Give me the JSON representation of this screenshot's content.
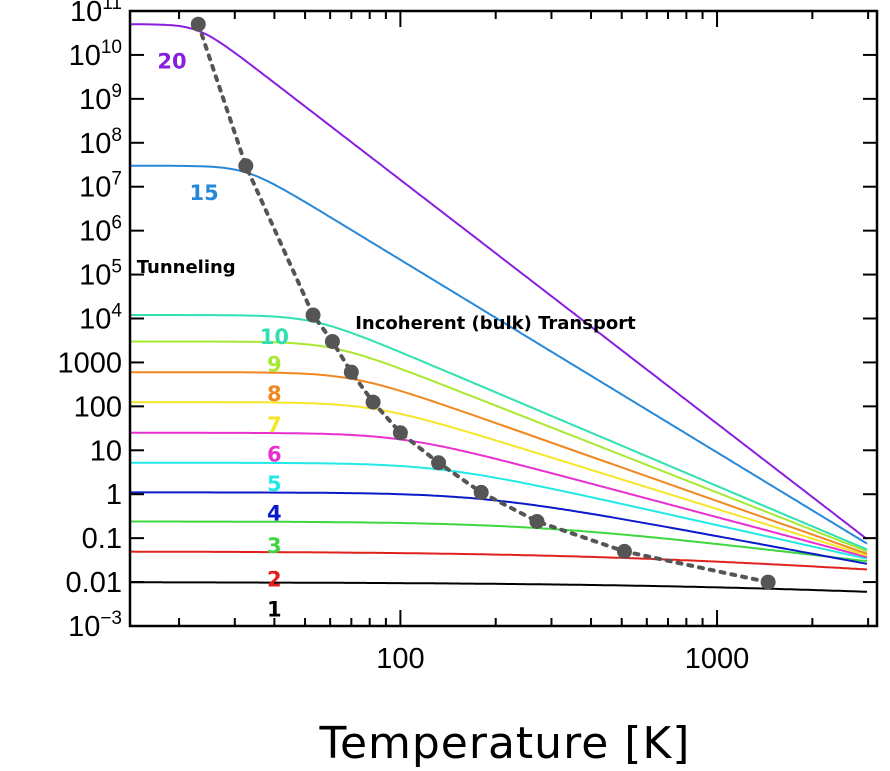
{
  "chart_data": {
    "type": "line",
    "xlabel": "Temperature [K]",
    "ylabel": "",
    "x_scale": "log",
    "y_scale": "log",
    "xlim": [
      14,
      3200
    ],
    "ylim": [
      0.001,
      100000000000
    ],
    "x_ticks": [
      {
        "value": 100,
        "label": "100"
      },
      {
        "value": 1000,
        "label": "1000"
      }
    ],
    "y_ticks": [
      {
        "value": 100000000000,
        "base": "10",
        "exp": "11",
        "label": ""
      },
      {
        "value": 10000000000,
        "base": "10",
        "exp": "10",
        "label": ""
      },
      {
        "value": 1000000000,
        "base": "10",
        "exp": "9",
        "label": ""
      },
      {
        "value": 100000000,
        "base": "10",
        "exp": "8",
        "label": ""
      },
      {
        "value": 10000000,
        "base": "10",
        "exp": "7",
        "label": ""
      },
      {
        "value": 1000000,
        "base": "10",
        "exp": "6",
        "label": ""
      },
      {
        "value": 100000,
        "base": "10",
        "exp": "5",
        "label": ""
      },
      {
        "value": 10000,
        "base": "10",
        "exp": "4",
        "label": ""
      },
      {
        "value": 1000,
        "base": "",
        "exp": "",
        "label": "1000"
      },
      {
        "value": 100,
        "base": "",
        "exp": "",
        "label": "100"
      },
      {
        "value": 10,
        "base": "",
        "exp": "",
        "label": "10"
      },
      {
        "value": 1,
        "base": "",
        "exp": "",
        "label": "1"
      },
      {
        "value": 0.1,
        "base": "",
        "exp": "",
        "label": "0.1"
      },
      {
        "value": 0.01,
        "base": "",
        "exp": "",
        "label": "0.01"
      },
      {
        "value": 0.001,
        "base": "10",
        "exp": "−3",
        "label": ""
      }
    ],
    "series": [
      {
        "label": "1",
        "color": "#000000",
        "plateau": 0.01,
        "crossover_T": 1450,
        "end_value": 0.0095,
        "label_x": 40,
        "label_y": 0.0025
      },
      {
        "label": "2",
        "color": "#e0201c",
        "plateau": 0.05,
        "crossover_T": 510,
        "end_value": 0.021,
        "label_x": 40,
        "label_y": 0.012
      },
      {
        "label": "3",
        "color": "#3dd63d",
        "plateau": 0.24,
        "crossover_T": 270,
        "end_value": 0.03,
        "label_x": 40,
        "label_y": 0.07
      },
      {
        "label": "4",
        "color": "#0a1ac8",
        "plateau": 1.1,
        "crossover_T": 180,
        "end_value": 0.026,
        "label_x": 40,
        "label_y": 0.38
      },
      {
        "label": "5",
        "color": "#22e8e8",
        "plateau": 5.2,
        "crossover_T": 132,
        "end_value": 0.034,
        "label_x": 40,
        "label_y": 1.8
      },
      {
        "label": "6",
        "color": "#e830d0",
        "plateau": 25,
        "crossover_T": 100,
        "end_value": 0.037,
        "label_x": 40,
        "label_y": 8.5
      },
      {
        "label": "7",
        "color": "#f5e62a",
        "plateau": 125,
        "crossover_T": 82,
        "end_value": 0.04,
        "label_x": 40,
        "label_y": 40
      },
      {
        "label": "8",
        "color": "#f08820",
        "plateau": 600,
        "crossover_T": 70,
        "end_value": 0.044,
        "label_x": 40,
        "label_y": 200
      },
      {
        "label": "9",
        "color": "#a8e830",
        "plateau": 3000,
        "crossover_T": 61,
        "end_value": 0.05,
        "label_x": 40,
        "label_y": 950
      },
      {
        "label": "10",
        "color": "#30e0b0",
        "plateau": 12000,
        "crossover_T": 53,
        "end_value": 0.055,
        "label_x": 40,
        "label_y": 4000
      },
      {
        "label": "15",
        "color": "#2888d8",
        "plateau": 30000000,
        "crossover_T": 32.5,
        "end_value": 0.075,
        "label_x": 24,
        "label_y": 7500000
      },
      {
        "label": "20",
        "color": "#8a1ee0",
        "plateau": 50000000000,
        "crossover_T": 23,
        "end_value": 0.095,
        "label_x": 19,
        "label_y": 7500000000
      }
    ],
    "crossover_line": {
      "style": "dotted",
      "color": "#555555",
      "points": [
        {
          "T": 23,
          "value": 50000000000
        },
        {
          "T": 32.5,
          "value": 30000000
        },
        {
          "T": 53,
          "value": 12000
        },
        {
          "T": 61,
          "value": 3000
        },
        {
          "T": 70,
          "value": 600
        },
        {
          "T": 82,
          "value": 125
        },
        {
          "T": 100,
          "value": 25
        },
        {
          "T": 132,
          "value": 5.2
        },
        {
          "T": 180,
          "value": 1.1
        },
        {
          "T": 270,
          "value": 0.24
        },
        {
          "T": 510,
          "value": 0.05
        },
        {
          "T": 1450,
          "value": 0.01
        }
      ]
    },
    "annotations": [
      {
        "text": "Tunneling",
        "x": 14.7,
        "y": 150000
      },
      {
        "text": "Incoherent (bulk) Transport",
        "x": 72,
        "y": 8000
      }
    ]
  }
}
